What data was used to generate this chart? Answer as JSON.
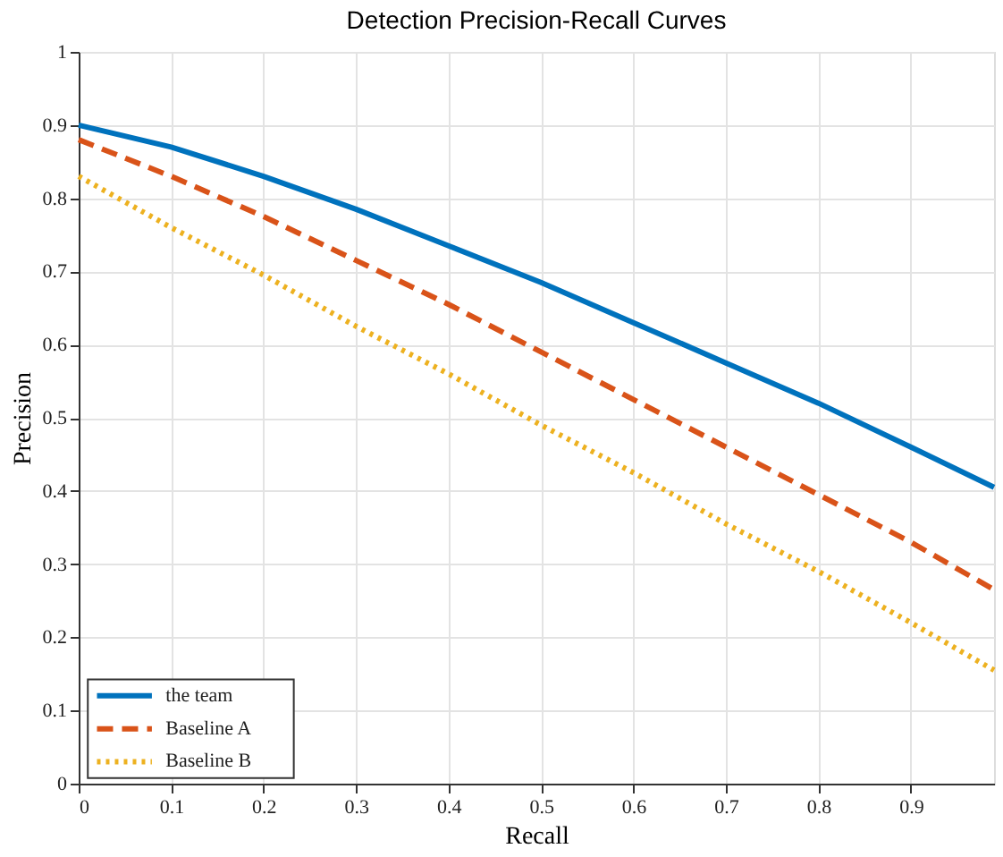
{
  "chart_data": {
    "type": "line",
    "title": "Detection Precision-Recall Curves",
    "xlabel": "Recall",
    "ylabel": "Precision",
    "x": [
      0,
      0.1,
      0.2,
      0.3,
      0.4,
      0.5,
      0.6,
      0.7,
      0.8,
      0.9,
      0.99
    ],
    "series": [
      {
        "name": "the team",
        "color": "#0072bd",
        "line_style": "solid",
        "values": [
          0.9,
          0.87,
          0.83,
          0.785,
          0.735,
          0.685,
          0.63,
          0.575,
          0.52,
          0.46,
          0.405
        ]
      },
      {
        "name": "Baseline A",
        "color": "#d95319",
        "line_style": "dashed",
        "values": [
          0.88,
          0.83,
          0.775,
          0.715,
          0.655,
          0.59,
          0.525,
          0.46,
          0.395,
          0.33,
          0.265
        ]
      },
      {
        "name": "Baseline B",
        "color": "#edb120",
        "line_style": "dotted",
        "values": [
          0.83,
          0.76,
          0.695,
          0.625,
          0.56,
          0.49,
          0.425,
          0.355,
          0.29,
          0.22,
          0.155
        ]
      }
    ],
    "xlim": [
      0,
      0.99
    ],
    "xticks": [
      0,
      0.1,
      0.2,
      0.3,
      0.4,
      0.5,
      0.6,
      0.7,
      0.8,
      0.9
    ],
    "ylim": [
      0,
      1
    ],
    "yticks": [
      0,
      0.1,
      0.2,
      0.3,
      0.4,
      0.5,
      0.6,
      0.7,
      0.8,
      0.9,
      1
    ],
    "grid": true,
    "legend": "bottom left"
  }
}
